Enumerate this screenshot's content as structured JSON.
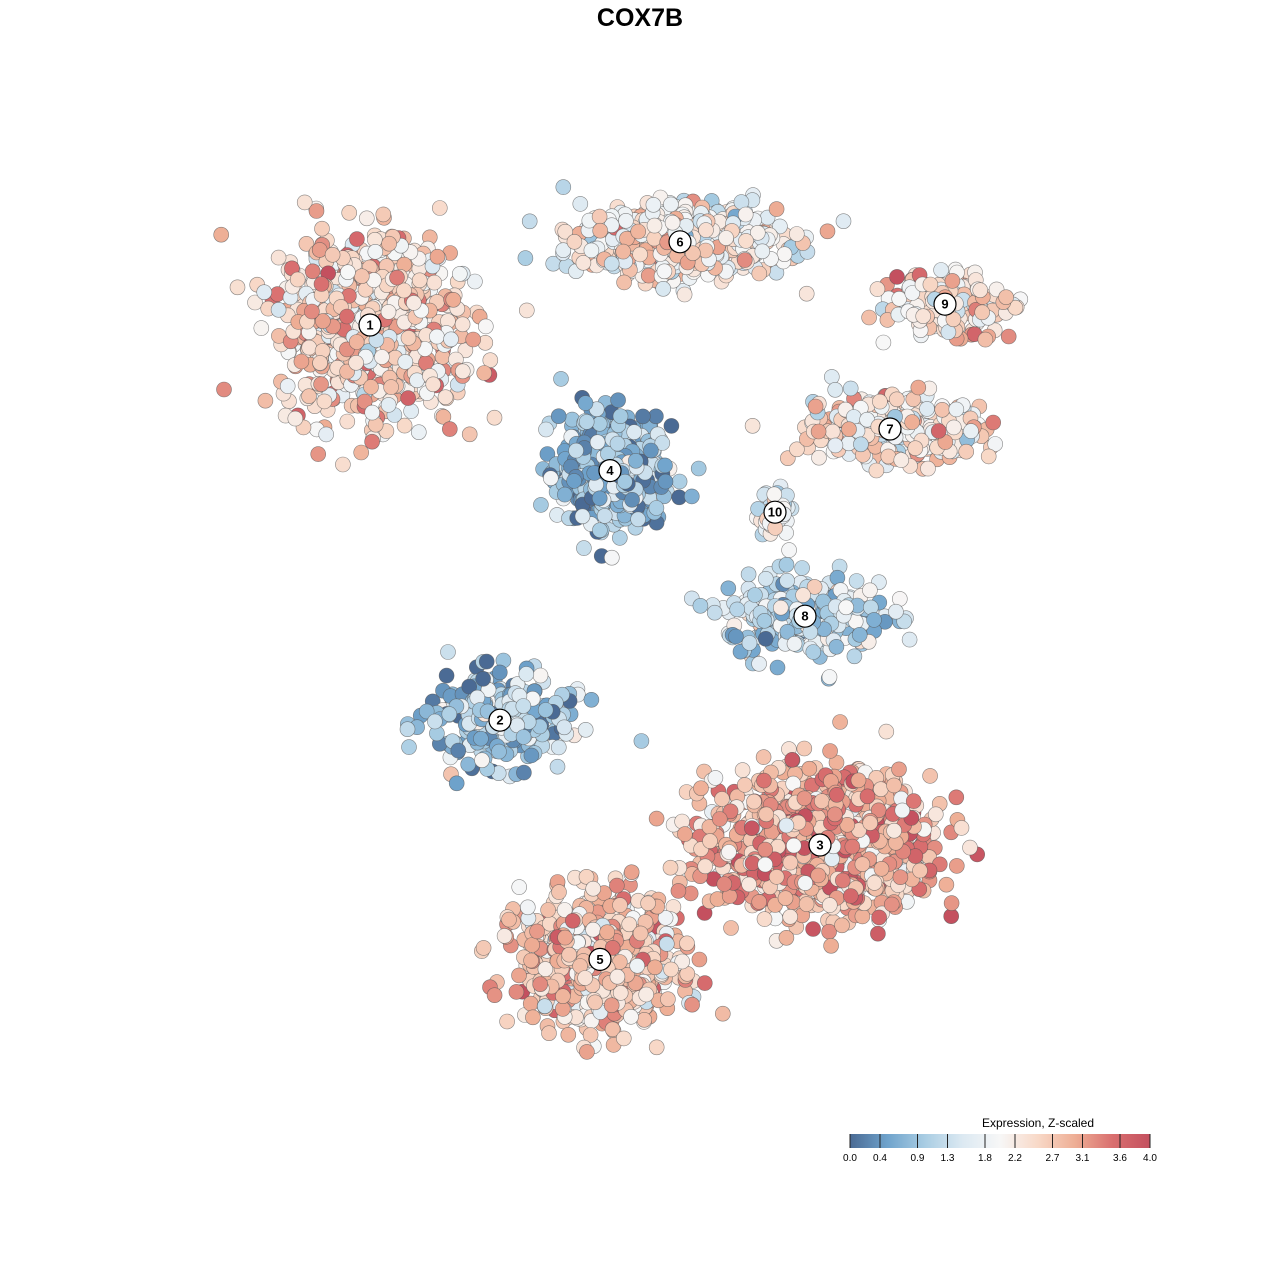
{
  "chart_data": {
    "type": "scatter",
    "title": "COX7B",
    "xlabel": "",
    "ylabel": "",
    "axes_visible": false,
    "grid": false,
    "legend_placement": "bottom-right",
    "colorbar": {
      "title": "Expression, Z-scaled",
      "min": 0.0,
      "max": 4.0,
      "tick_labels": [
        "0.0",
        "0.4",
        "0.9",
        "1.3",
        "1.8",
        "2.2",
        "2.7",
        "3.1",
        "3.6",
        "4.0"
      ],
      "tick_values": [
        0.0,
        0.4,
        0.9,
        1.3,
        1.8,
        2.2,
        2.7,
        3.1,
        3.6,
        4.0
      ],
      "colors": [
        "#4a6a94",
        "#6fa3cc",
        "#a9cde3",
        "#dce9f2",
        "#f7f7f7",
        "#f8d9c8",
        "#eeae95",
        "#d96f6f",
        "#c4505f"
      ]
    },
    "clusters": [
      {
        "label": "1",
        "x": -5.4,
        "y": 6.0,
        "spread": [
          1.6,
          1.5
        ],
        "mean_expr": 2.5,
        "n": 900
      },
      {
        "label": "6",
        "x": 0.8,
        "y": 7.6,
        "spread": [
          1.8,
          0.6
        ],
        "mean_expr": 2.1,
        "n": 700
      },
      {
        "label": "9",
        "x": 6.1,
        "y": 6.4,
        "spread": [
          1.0,
          0.5
        ],
        "mean_expr": 2.4,
        "n": 220
      },
      {
        "label": "7",
        "x": 5.0,
        "y": 4.0,
        "spread": [
          1.7,
          0.6
        ],
        "mean_expr": 2.3,
        "n": 320
      },
      {
        "label": "4",
        "x": -0.6,
        "y": 3.2,
        "spread": [
          0.9,
          0.9
        ],
        "mean_expr": 0.8,
        "n": 600
      },
      {
        "label": "10",
        "x": 2.7,
        "y": 2.4,
        "spread": [
          0.3,
          0.4
        ],
        "mean_expr": 1.8,
        "n": 60
      },
      {
        "label": "8",
        "x": 3.3,
        "y": 0.4,
        "spread": [
          1.4,
          0.7
        ],
        "mean_expr": 1.3,
        "n": 300
      },
      {
        "label": "2",
        "x": -2.8,
        "y": -1.6,
        "spread": [
          1.2,
          0.8
        ],
        "mean_expr": 1.0,
        "n": 320
      },
      {
        "label": "3",
        "x": 3.6,
        "y": -4.0,
        "spread": [
          2.0,
          1.2
        ],
        "mean_expr": 2.9,
        "n": 1100
      },
      {
        "label": "5",
        "x": -0.8,
        "y": -6.2,
        "spread": [
          1.4,
          1.1
        ],
        "mean_expr": 2.6,
        "n": 800
      }
    ]
  }
}
